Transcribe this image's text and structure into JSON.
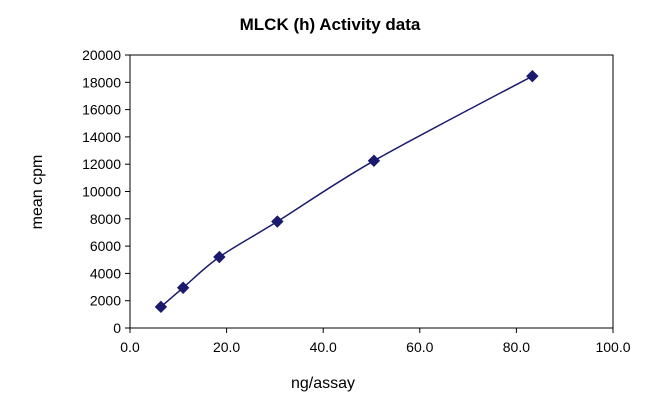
{
  "chart_data": {
    "type": "scatter",
    "title": "MLCK (h) Activity data",
    "xlabel": "ng/assay",
    "ylabel": "mean cpm",
    "xlim": [
      0,
      100
    ],
    "ylim": [
      0,
      20000
    ],
    "x_ticks": [
      "0.0",
      "20.0",
      "40.0",
      "60.0",
      "80.0",
      "100.0"
    ],
    "y_ticks": [
      "0",
      "2000",
      "4000",
      "6000",
      "8000",
      "10000",
      "12000",
      "14000",
      "16000",
      "18000",
      "20000"
    ],
    "grid": false,
    "legend": "none",
    "series": [
      {
        "marker": "diamond",
        "connected": "smooth-line",
        "color": "#1a1a6e",
        "points": [
          {
            "x": 6.4,
            "y": 1550
          },
          {
            "x": 11.0,
            "y": 2950
          },
          {
            "x": 18.5,
            "y": 5200
          },
          {
            "x": 30.5,
            "y": 7800
          },
          {
            "x": 50.5,
            "y": 12250
          },
          {
            "x": 83.3,
            "y": 18450
          }
        ]
      }
    ]
  }
}
